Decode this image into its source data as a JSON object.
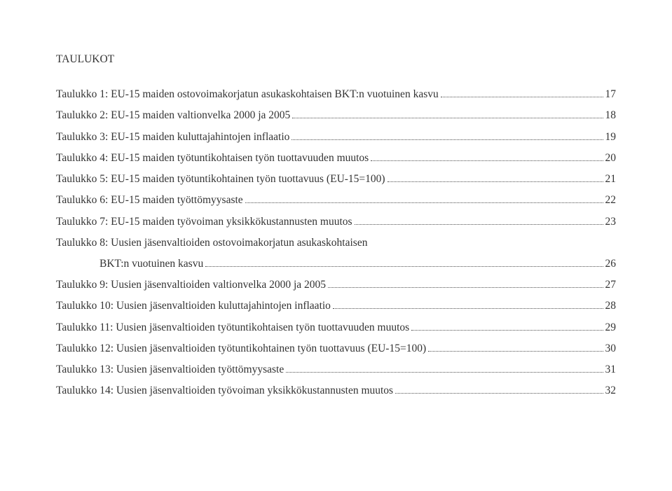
{
  "section_title": "TAULUKOT",
  "entries": [
    {
      "label": "Taulukko 1: EU-15 maiden ostovoimakorjatun asukaskohtaisen BKT:n vuotuinen kasvu",
      "page": "17"
    },
    {
      "label": "Taulukko 2: EU-15 maiden valtionvelka 2000 ja 2005",
      "page": "18"
    },
    {
      "label": "Taulukko 3: EU-15 maiden kuluttajahintojen inflaatio",
      "page": "19"
    },
    {
      "label": "Taulukko 4: EU-15 maiden työtuntikohtaisen työn tuottavuuden muutos",
      "page": "20"
    },
    {
      "label": "Taulukko 5: EU-15 maiden työtuntikohtainen työn tuottavuus (EU-15=100)",
      "page": "21"
    },
    {
      "label": "Taulukko 6: EU-15 maiden työttömyysaste",
      "page": "22"
    },
    {
      "label": "Taulukko 7: EU-15 maiden työvoiman yksikkökustannusten muutos",
      "page": "23"
    },
    {
      "label": "Taulukko 8: Uusien jäsenvaltioiden ostovoimakorjatun asukaskohtaisen",
      "page": null,
      "continuation": {
        "label": "BKT:n vuotuinen kasvu",
        "page": "26"
      }
    },
    {
      "label": "Taulukko 9: Uusien jäsenvaltioiden valtionvelka 2000 ja 2005",
      "page": "27"
    },
    {
      "label": "Taulukko 10: Uusien jäsenvaltioiden kuluttajahintojen inflaatio",
      "page": "28"
    },
    {
      "label": "Taulukko 11: Uusien jäsenvaltioiden työtuntikohtaisen työn tuottavuuden muutos",
      "page": "29"
    },
    {
      "label": "Taulukko 12: Uusien jäsenvaltioiden työtuntikohtainen työn tuottavuus (EU-15=100)",
      "page": "30"
    },
    {
      "label": "Taulukko 13: Uusien jäsenvaltioiden työttömyysaste",
      "page": "31"
    },
    {
      "label": "Taulukko 14: Uusien jäsenvaltioiden työvoiman yksikkökustannusten muutos",
      "page": "32"
    }
  ]
}
